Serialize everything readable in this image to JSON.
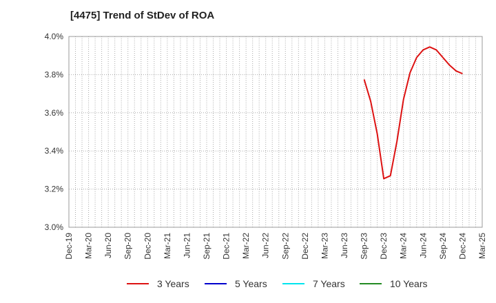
{
  "chart_data": {
    "type": "line",
    "title": "[4475]  Trend of StDev of ROA",
    "xlabel": "",
    "ylabel": "",
    "ylim": [
      3.0,
      4.0
    ],
    "yticks": [
      "3.0%",
      "3.2%",
      "3.4%",
      "3.6%",
      "3.8%",
      "4.0%"
    ],
    "ytick_values": [
      3.0,
      3.2,
      3.4,
      3.6,
      3.8,
      4.0
    ],
    "xticks": [
      "Dec-19",
      "Mar-20",
      "Jun-20",
      "Sep-20",
      "Dec-20",
      "Mar-21",
      "Jun-21",
      "Sep-21",
      "Dec-21",
      "Mar-22",
      "Jun-22",
      "Sep-22",
      "Dec-22",
      "Mar-23",
      "Jun-23",
      "Sep-23",
      "Dec-23",
      "Mar-24",
      "Jun-24",
      "Sep-24",
      "Dec-24",
      "Mar-25"
    ],
    "x_month_range": [
      0,
      63
    ],
    "grid": true,
    "legend_position": "bottom",
    "series": [
      {
        "name": "3 Years",
        "color": "#dd1111",
        "x_month": [
          45,
          46,
          47,
          48,
          49,
          50,
          51,
          52,
          53,
          54,
          55,
          56,
          57,
          58,
          59,
          60
        ],
        "values": [
          3.775,
          3.66,
          3.49,
          3.255,
          3.27,
          3.45,
          3.67,
          3.81,
          3.89,
          3.93,
          3.945,
          3.93,
          3.89,
          3.85,
          3.82,
          3.805
        ]
      },
      {
        "name": "5 Years",
        "color": "#0000cc",
        "x_month": [],
        "values": []
      },
      {
        "name": "7 Years",
        "color": "#00e5ee",
        "x_month": [],
        "values": []
      },
      {
        "name": "10 Years",
        "color": "#228b22",
        "x_month": [],
        "values": []
      }
    ]
  }
}
